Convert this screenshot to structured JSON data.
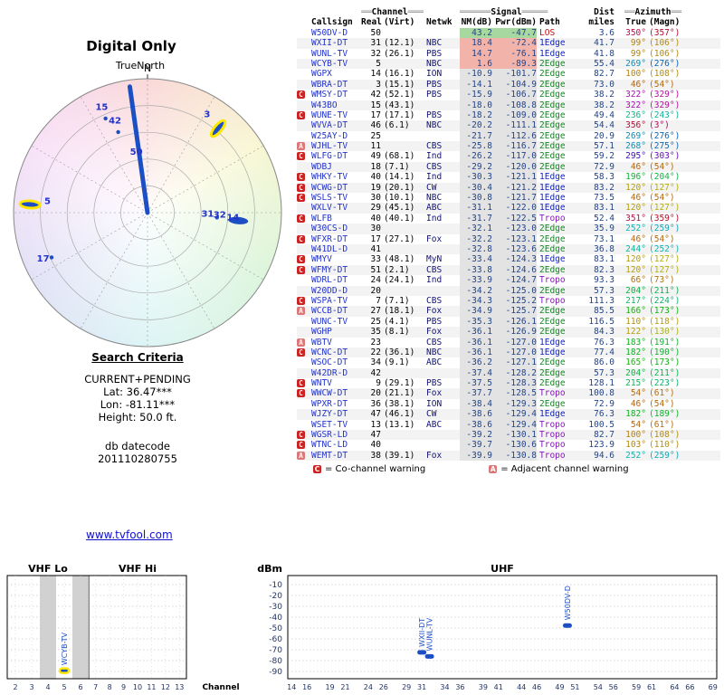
{
  "colors": {
    "link": "#1111cc",
    "callsign": "#2233cc",
    "network": "#111177",
    "value": "#224488",
    "path_LOS": "#bb1111",
    "path_1Edge": "#1122cc",
    "path_2Edge": "#118822",
    "path_Tropo": "#8819bb",
    "warn_badge_bg": "#cc2222",
    "sig_green": "#a6d8a0",
    "sig_red": "#f2b3ab",
    "sig_default": "#e3e3e3",
    "marker": "#1d4fc4",
    "highlight": "#ffe800",
    "grid": "#999999"
  },
  "criteria": {
    "heading": "Search Criteria",
    "lines": [
      "CURRENT+PENDING",
      "Lat: 36.47***",
      "Lon: -81.11***",
      "Height: 50.0 ft."
    ],
    "datecode_label": "db datecode",
    "datecode": "201110280755"
  },
  "link": {
    "text": "www.tvfool.com"
  },
  "table": {
    "h1": {
      "ch_l": "══",
      "ch": "Channel",
      "ch_r": "═══",
      "sig_l": "══════",
      "sig": "Signal",
      "sig_r": "═════",
      "dist": "Dist",
      "az_l": "══",
      "az": "Azimuth",
      "az_r": "══"
    },
    "h2": {
      "callsign": "Callsign",
      "real": "Real",
      "virt": "(Virt)",
      "netwk": "Netwk",
      "nm": "NM(dB)",
      "pwr": "Pwr(dBm)",
      "path": "Path",
      "miles": "miles",
      "tru": "True",
      "magn": "(Magn)"
    },
    "legend": {
      "c_badge": "C",
      "c_text": "=  Co-channel warning",
      "a_badge": "A",
      "a_text": "=  Adjacent channel warning"
    },
    "rows": [
      {
        "w": "",
        "cs": "W50DV-D",
        "re": "50",
        "vi": "",
        "nw": "",
        "nm": "43.2",
        "pw": "-47.7",
        "pa": "LOS",
        "mi": "3.6",
        "tr": 350,
        "mg": 357,
        "sig": "green"
      },
      {
        "w": "",
        "cs": "WXII-DT",
        "re": "31",
        "vi": "(12.1)",
        "nw": "NBC",
        "nm": "18.4",
        "pw": "-72.4",
        "pa": "1Edge",
        "mi": "41.7",
        "tr": 99,
        "mg": 106,
        "sig": "red"
      },
      {
        "w": "",
        "cs": "WUNL-TV",
        "re": "32",
        "vi": "(26.1)",
        "nw": "PBS",
        "nm": "14.7",
        "pw": "-76.1",
        "pa": "1Edge",
        "mi": "41.8",
        "tr": 99,
        "mg": 106,
        "sig": "red"
      },
      {
        "w": "",
        "cs": "WCYB-TV",
        "re": "5",
        "vi": "",
        "nw": "NBC",
        "nm": "1.6",
        "pw": "-89.3",
        "pa": "2Edge",
        "mi": "55.4",
        "tr": 269,
        "mg": 276,
        "sig": "red"
      },
      {
        "w": "",
        "cs": "WGPX",
        "re": "14",
        "vi": "(16.1)",
        "nw": "ION",
        "nm": "-10.9",
        "pw": "-101.7",
        "pa": "2Edge",
        "mi": "82.7",
        "tr": 100,
        "mg": 108,
        "sig": ""
      },
      {
        "w": "",
        "cs": "WBRA-DT",
        "re": "3",
        "vi": "(15.1)",
        "nw": "PBS",
        "nm": "-14.1",
        "pw": "-104.9",
        "pa": "2Edge",
        "mi": "73.0",
        "tr": 46,
        "mg": 54,
        "sig": ""
      },
      {
        "w": "C",
        "cs": "WMSY-DT",
        "re": "42",
        "vi": "(52.1)",
        "nw": "PBS",
        "nm": "-15.9",
        "pw": "-106.7",
        "pa": "2Edge",
        "mi": "38.2",
        "tr": 322,
        "mg": 329,
        "sig": ""
      },
      {
        "w": "",
        "cs": "W43BO",
        "re": "15",
        "vi": "(43.1)",
        "nw": "",
        "nm": "-18.0",
        "pw": "-108.8",
        "pa": "2Edge",
        "mi": "38.2",
        "tr": 322,
        "mg": 329,
        "sig": ""
      },
      {
        "w": "C",
        "cs": "WUNE-TV",
        "re": "17",
        "vi": "(17.1)",
        "nw": "PBS",
        "nm": "-18.2",
        "pw": "-109.0",
        "pa": "2Edge",
        "mi": "49.4",
        "tr": 236,
        "mg": 243,
        "sig": ""
      },
      {
        "w": "",
        "cs": "WVVA-DT",
        "re": "46",
        "vi": "(6.1)",
        "nw": "NBC",
        "nm": "-20.2",
        "pw": "-111.1",
        "pa": "2Edge",
        "mi": "54.4",
        "tr": 356,
        "mg": 3,
        "sig": ""
      },
      {
        "w": "",
        "cs": "W25AY-D",
        "re": "25",
        "vi": "",
        "nw": "",
        "nm": "-21.7",
        "pw": "-112.6",
        "pa": "2Edge",
        "mi": "20.9",
        "tr": 269,
        "mg": 276,
        "sig": ""
      },
      {
        "w": "A",
        "cs": "WJHL-TV",
        "re": "11",
        "vi": "",
        "nw": "CBS",
        "nm": "-25.8",
        "pw": "-116.7",
        "pa": "2Edge",
        "mi": "57.1",
        "tr": 268,
        "mg": 275,
        "sig": ""
      },
      {
        "w": "C",
        "cs": "WLFG-DT",
        "re": "49",
        "vi": "(68.1)",
        "nw": "Ind",
        "nm": "-26.2",
        "pw": "-117.0",
        "pa": "2Edge",
        "mi": "59.2",
        "tr": 295,
        "mg": 303,
        "sig": ""
      },
      {
        "w": "",
        "cs": "WDBJ",
        "re": "18",
        "vi": "(7.1)",
        "nw": "CBS",
        "nm": "-29.2",
        "pw": "-120.0",
        "pa": "2Edge",
        "mi": "72.9",
        "tr": 46,
        "mg": 54,
        "sig": ""
      },
      {
        "w": "C",
        "cs": "WHKY-TV",
        "re": "40",
        "vi": "(14.1)",
        "nw": "Ind",
        "nm": "-30.3",
        "pw": "-121.1",
        "pa": "1Edge",
        "mi": "58.3",
        "tr": 196,
        "mg": 204,
        "sig": ""
      },
      {
        "w": "C",
        "cs": "WCWG-DT",
        "re": "19",
        "vi": "(20.1)",
        "nw": "CW",
        "nm": "-30.4",
        "pw": "-121.2",
        "pa": "1Edge",
        "mi": "83.2",
        "tr": 120,
        "mg": 127,
        "sig": ""
      },
      {
        "w": "C",
        "cs": "WSLS-TV",
        "re": "30",
        "vi": "(10.1)",
        "nw": "NBC",
        "nm": "-30.8",
        "pw": "-121.7",
        "pa": "1Edge",
        "mi": "73.5",
        "tr": 46,
        "mg": 54,
        "sig": ""
      },
      {
        "w": "",
        "cs": "WXLV-TV",
        "re": "29",
        "vi": "(45.1)",
        "nw": "ABC",
        "nm": "-31.1",
        "pw": "-122.0",
        "pa": "1Edge",
        "mi": "83.1",
        "tr": 120,
        "mg": 127,
        "sig": ""
      },
      {
        "w": "C",
        "cs": "WLFB",
        "re": "40",
        "vi": "(40.1)",
        "nw": "Ind",
        "nm": "-31.7",
        "pw": "-122.5",
        "pa": "Tropo",
        "mi": "52.4",
        "tr": 351,
        "mg": 359,
        "sig": ""
      },
      {
        "w": "",
        "cs": "W30CS-D",
        "re": "30",
        "vi": "",
        "nw": "",
        "nm": "-32.1",
        "pw": "-123.0",
        "pa": "2Edge",
        "mi": "35.9",
        "tr": 252,
        "mg": 259,
        "sig": ""
      },
      {
        "w": "C",
        "cs": "WFXR-DT",
        "re": "17",
        "vi": "(27.1)",
        "nw": "Fox",
        "nm": "-32.2",
        "pw": "-123.1",
        "pa": "2Edge",
        "mi": "73.1",
        "tr": 46,
        "mg": 54,
        "sig": ""
      },
      {
        "w": "",
        "cs": "W41DL-D",
        "re": "41",
        "vi": "",
        "nw": "",
        "nm": "-32.8",
        "pw": "-123.6",
        "pa": "2Edge",
        "mi": "36.8",
        "tr": 244,
        "mg": 252,
        "sig": ""
      },
      {
        "w": "C",
        "cs": "WMYV",
        "re": "33",
        "vi": "(48.1)",
        "nw": "MyN",
        "nm": "-33.4",
        "pw": "-124.3",
        "pa": "1Edge",
        "mi": "83.1",
        "tr": 120,
        "mg": 127,
        "sig": ""
      },
      {
        "w": "C",
        "cs": "WFMY-DT",
        "re": "51",
        "vi": "(2.1)",
        "nw": "CBS",
        "nm": "-33.8",
        "pw": "-124.6",
        "pa": "2Edge",
        "mi": "82.3",
        "tr": 120,
        "mg": 127,
        "sig": ""
      },
      {
        "w": "",
        "cs": "WDRL-DT",
        "re": "24",
        "vi": "(24.1)",
        "nw": "Ind",
        "nm": "-33.9",
        "pw": "-124.7",
        "pa": "Tropo",
        "mi": "93.3",
        "tr": 66,
        "mg": 73,
        "sig": ""
      },
      {
        "w": "",
        "cs": "W20DD-D",
        "re": "20",
        "vi": "",
        "nw": "",
        "nm": "-34.2",
        "pw": "-125.0",
        "pa": "2Edge",
        "mi": "57.3",
        "tr": 204,
        "mg": 211,
        "sig": ""
      },
      {
        "w": "C",
        "cs": "WSPA-TV",
        "re": "7",
        "vi": "(7.1)",
        "nw": "CBS",
        "nm": "-34.3",
        "pw": "-125.2",
        "pa": "Tropo",
        "mi": "111.3",
        "tr": 217,
        "mg": 224,
        "sig": ""
      },
      {
        "w": "A",
        "cs": "WCCB-DT",
        "re": "27",
        "vi": "(18.1)",
        "nw": "Fox",
        "nm": "-34.9",
        "pw": "-125.7",
        "pa": "2Edge",
        "mi": "85.5",
        "tr": 166,
        "mg": 173,
        "sig": ""
      },
      {
        "w": "",
        "cs": "WUNC-TV",
        "re": "25",
        "vi": "(4.1)",
        "nw": "PBS",
        "nm": "-35.3",
        "pw": "-126.1",
        "pa": "2Edge",
        "mi": "116.5",
        "tr": 110,
        "mg": 118,
        "sig": ""
      },
      {
        "w": "",
        "cs": "WGHP",
        "re": "35",
        "vi": "(8.1)",
        "nw": "Fox",
        "nm": "-36.1",
        "pw": "-126.9",
        "pa": "2Edge",
        "mi": "84.3",
        "tr": 122,
        "mg": 130,
        "sig": ""
      },
      {
        "w": "A",
        "cs": "WBTV",
        "re": "23",
        "vi": "",
        "nw": "CBS",
        "nm": "-36.1",
        "pw": "-127.0",
        "pa": "1Edge",
        "mi": "76.3",
        "tr": 183,
        "mg": 191,
        "sig": ""
      },
      {
        "w": "C",
        "cs": "WCNC-DT",
        "re": "22",
        "vi": "(36.1)",
        "nw": "NBC",
        "nm": "-36.1",
        "pw": "-127.0",
        "pa": "1Edge",
        "mi": "77.4",
        "tr": 182,
        "mg": 190,
        "sig": ""
      },
      {
        "w": "",
        "cs": "WSOC-DT",
        "re": "34",
        "vi": "(9.1)",
        "nw": "ABC",
        "nm": "-36.2",
        "pw": "-127.1",
        "pa": "2Edge",
        "mi": "86.0",
        "tr": 165,
        "mg": 173,
        "sig": ""
      },
      {
        "w": "",
        "cs": "W42DR-D",
        "re": "42",
        "vi": "",
        "nw": "",
        "nm": "-37.4",
        "pw": "-128.2",
        "pa": "2Edge",
        "mi": "57.3",
        "tr": 204,
        "mg": 211,
        "sig": ""
      },
      {
        "w": "C",
        "cs": "WNTV",
        "re": "9",
        "vi": "(29.1)",
        "nw": "PBS",
        "nm": "-37.5",
        "pw": "-128.3",
        "pa": "2Edge",
        "mi": "128.1",
        "tr": 215,
        "mg": 223,
        "sig": ""
      },
      {
        "w": "C",
        "cs": "WWCW-DT",
        "re": "20",
        "vi": "(21.1)",
        "nw": "Fox",
        "nm": "-37.7",
        "pw": "-128.5",
        "pa": "Tropo",
        "mi": "100.8",
        "tr": 54,
        "mg": 61,
        "sig": ""
      },
      {
        "w": "",
        "cs": "WPXR-DT",
        "re": "36",
        "vi": "(38.1)",
        "nw": "ION",
        "nm": "-38.4",
        "pw": "-129.3",
        "pa": "2Edge",
        "mi": "72.9",
        "tr": 46,
        "mg": 54,
        "sig": ""
      },
      {
        "w": "",
        "cs": "WJZY-DT",
        "re": "47",
        "vi": "(46.1)",
        "nw": "CW",
        "nm": "-38.6",
        "pw": "-129.4",
        "pa": "1Edge",
        "mi": "76.3",
        "tr": 182,
        "mg": 189,
        "sig": ""
      },
      {
        "w": "",
        "cs": "WSET-TV",
        "re": "13",
        "vi": "(13.1)",
        "nw": "ABC",
        "nm": "-38.6",
        "pw": "-129.4",
        "pa": "Tropo",
        "mi": "100.5",
        "tr": 54,
        "mg": 61,
        "sig": ""
      },
      {
        "w": "C",
        "cs": "WGSR-LD",
        "re": "47",
        "vi": "",
        "nw": "",
        "nm": "-39.2",
        "pw": "-130.1",
        "pa": "Tropo",
        "mi": "82.7",
        "tr": 100,
        "mg": 108,
        "sig": ""
      },
      {
        "w": "C",
        "cs": "WTNC-LD",
        "re": "40",
        "vi": "",
        "nw": "",
        "nm": "-39.7",
        "pw": "-130.6",
        "pa": "Tropo",
        "mi": "123.9",
        "tr": 103,
        "mg": 110,
        "sig": ""
      },
      {
        "w": "A",
        "cs": "WEMT-DT",
        "re": "38",
        "vi": "(39.1)",
        "nw": "Fox",
        "nm": "-39.9",
        "pw": "-130.8",
        "pa": "Tropo",
        "mi": "94.6",
        "tr": 252,
        "mg": 259,
        "sig": ""
      }
    ]
  },
  "chart_data": [
    {
      "type": "radar",
      "title": "Digital Only",
      "orientation_label": "TrueNorth",
      "north_marker": "N",
      "rings": 5,
      "beam_line": {
        "azimuth": 352,
        "r": 0.95
      },
      "station_labels": [
        {
          "text": "15",
          "azimuth": 336,
          "r": 0.84
        },
        {
          "text": "42",
          "azimuth": 340,
          "r": 0.71
        },
        {
          "text": "50",
          "azimuth": 349,
          "r": 0.44
        },
        {
          "text": "3",
          "azimuth": 32,
          "r": 0.84
        },
        {
          "text": "5",
          "azimuth": 275,
          "r": 0.75
        },
        {
          "text": "17",
          "azimuth": 245,
          "r": 0.86
        },
        {
          "text": "31",
          "azimuth": 94,
          "r": 0.45
        },
        {
          "text": "32",
          "azimuth": 94,
          "r": 0.54
        },
        {
          "text": "14",
          "azimuth": 95,
          "r": 0.64
        }
      ],
      "markers": [
        {
          "type": "pill",
          "azimuth": 40,
          "r": 0.82,
          "highlight": true
        },
        {
          "type": "pill",
          "azimuth": 274,
          "r": 0.88,
          "highlight": true
        },
        {
          "type": "pill",
          "azimuth": 95,
          "r": 0.68,
          "highlight": false
        },
        {
          "type": "dot",
          "azimuth": 336,
          "r": 0.77
        },
        {
          "type": "dot",
          "azimuth": 340,
          "r": 0.64
        },
        {
          "type": "dot",
          "azimuth": 245,
          "r": 0.79
        },
        {
          "type": "dot",
          "azimuth": 94,
          "r": 0.52
        }
      ]
    },
    {
      "type": "scatter",
      "xlabel": "Channel",
      "ylabel": "dBm",
      "yticks": [
        -10,
        -20,
        -30,
        -40,
        -50,
        -60,
        -70,
        -80,
        -90
      ],
      "bands": [
        {
          "name": "VHF Lo",
          "first": 2,
          "last": 6,
          "ticks": [
            2,
            3,
            4,
            5,
            6
          ]
        },
        {
          "name": "VHF Hi",
          "first": 7,
          "last": 13,
          "ticks": [
            7,
            8,
            9,
            10,
            11,
            12,
            13
          ]
        },
        {
          "name": "UHF",
          "first": 14,
          "last": 69,
          "ticks": [
            14,
            16,
            19,
            21,
            24,
            26,
            29,
            31,
            34,
            36,
            39,
            41,
            44,
            46,
            49,
            51,
            54,
            56,
            59,
            61,
            64,
            66,
            69
          ]
        }
      ],
      "shaded_channels": [
        4,
        6
      ],
      "stations": [
        {
          "callsign": "WCYB-TV",
          "channel": 5,
          "dbm": -89.3,
          "highlight": true
        },
        {
          "callsign": "WXII-DT",
          "channel": 31,
          "dbm": -72.4,
          "highlight": false
        },
        {
          "callsign": "WUNL-TV",
          "channel": 32,
          "dbm": -76.1,
          "highlight": false
        },
        {
          "callsign": "W50DV-D",
          "channel": 50,
          "dbm": -47.7,
          "highlight": false
        }
      ]
    }
  ]
}
